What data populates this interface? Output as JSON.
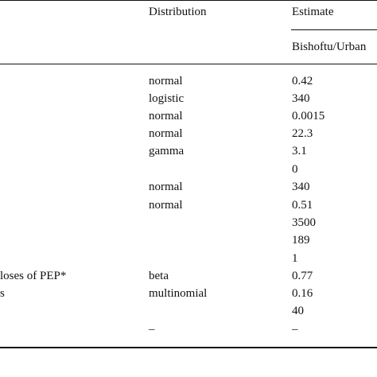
{
  "header": {
    "distribution": "Distribution",
    "estimate": "Estimate",
    "sub_estimate": "Bishoftu/Urban"
  },
  "rows": [
    {
      "label": "",
      "distribution": "normal",
      "estimate": "0.42"
    },
    {
      "label": "",
      "distribution": "logistic",
      "estimate": "340"
    },
    {
      "label": "",
      "distribution": "normal",
      "estimate": "0.0015"
    },
    {
      "label": "",
      "distribution": "normal",
      "estimate": "22.3"
    },
    {
      "label": "",
      "distribution": "gamma",
      "estimate": "3.1"
    },
    {
      "label": "",
      "distribution": "",
      "estimate": "0"
    },
    {
      "label": "",
      "distribution": "normal",
      "estimate": "340"
    },
    {
      "label": "",
      "distribution": "normal",
      "estimate": "0.51"
    },
    {
      "label": "",
      "distribution": "",
      "estimate": "3500"
    },
    {
      "label": "",
      "distribution": "",
      "estimate": "189"
    },
    {
      "label": "",
      "distribution": "",
      "estimate": "1"
    },
    {
      "label": "loses of PEP*",
      "distribution": "beta",
      "estimate": "0.77"
    },
    {
      "label": "s",
      "distribution": "multinomial",
      "estimate": "0.16"
    },
    {
      "label": "",
      "distribution": "",
      "estimate": "40"
    },
    {
      "label": "",
      "distribution": "–",
      "estimate": "–"
    }
  ]
}
